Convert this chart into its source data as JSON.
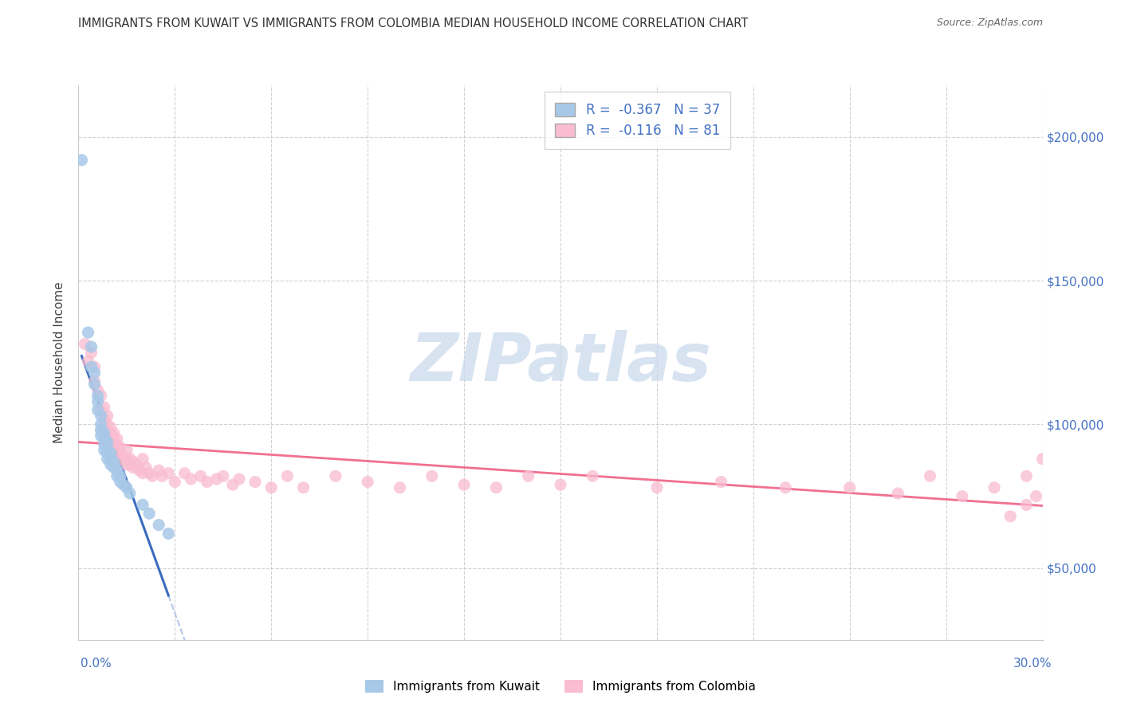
{
  "title": "IMMIGRANTS FROM KUWAIT VS IMMIGRANTS FROM COLOMBIA MEDIAN HOUSEHOLD INCOME CORRELATION CHART",
  "source": "Source: ZipAtlas.com",
  "ylabel": "Median Household Income",
  "ytick_labels": [
    "$50,000",
    "$100,000",
    "$150,000",
    "$200,000"
  ],
  "ytick_values": [
    50000,
    100000,
    150000,
    200000
  ],
  "xmin": 0.0,
  "xmax": 0.3,
  "ymin": 25000,
  "ymax": 218000,
  "kuwait_scatter_color": "#a8c8e8",
  "kuwait_line_color": "#3a6bbf",
  "colombia_scatter_color": "#f9bcd0",
  "colombia_line_color": "#f07090",
  "dashed_color": "#b0c8e8",
  "watermark_color": "#c8d8ec",
  "kuwait_points_x": [
    0.001,
    0.003,
    0.004,
    0.004,
    0.005,
    0.005,
    0.006,
    0.006,
    0.006,
    0.007,
    0.007,
    0.007,
    0.007,
    0.008,
    0.008,
    0.008,
    0.008,
    0.009,
    0.009,
    0.009,
    0.009,
    0.01,
    0.01,
    0.01,
    0.011,
    0.011,
    0.012,
    0.012,
    0.013,
    0.013,
    0.014,
    0.015,
    0.016,
    0.02,
    0.022,
    0.025,
    0.028
  ],
  "kuwait_points_y": [
    192000,
    132000,
    127000,
    120000,
    118000,
    114000,
    110000,
    108000,
    105000,
    103000,
    100000,
    98000,
    96000,
    97000,
    95000,
    93000,
    91000,
    94000,
    92000,
    90000,
    88000,
    90000,
    88000,
    86000,
    87000,
    85000,
    84000,
    82000,
    82000,
    80000,
    79000,
    78000,
    76000,
    72000,
    69000,
    65000,
    62000
  ],
  "colombia_points_x": [
    0.002,
    0.003,
    0.004,
    0.005,
    0.005,
    0.006,
    0.007,
    0.007,
    0.007,
    0.008,
    0.008,
    0.008,
    0.008,
    0.009,
    0.009,
    0.009,
    0.01,
    0.01,
    0.01,
    0.01,
    0.011,
    0.011,
    0.011,
    0.012,
    0.012,
    0.013,
    0.013,
    0.013,
    0.014,
    0.015,
    0.015,
    0.015,
    0.016,
    0.016,
    0.017,
    0.017,
    0.018,
    0.019,
    0.02,
    0.02,
    0.021,
    0.022,
    0.023,
    0.025,
    0.026,
    0.028,
    0.03,
    0.033,
    0.035,
    0.038,
    0.04,
    0.043,
    0.045,
    0.048,
    0.05,
    0.055,
    0.06,
    0.065,
    0.07,
    0.08,
    0.09,
    0.1,
    0.11,
    0.12,
    0.13,
    0.14,
    0.15,
    0.16,
    0.18,
    0.2,
    0.22,
    0.24,
    0.255,
    0.265,
    0.275,
    0.285,
    0.29,
    0.295,
    0.298,
    0.3,
    0.295
  ],
  "colombia_points_y": [
    128000,
    122000,
    125000,
    115000,
    120000,
    112000,
    110000,
    105000,
    98000,
    106000,
    102000,
    99000,
    97000,
    103000,
    100000,
    97000,
    99000,
    97000,
    95000,
    93000,
    97000,
    95000,
    93000,
    95000,
    93000,
    92000,
    90000,
    88000,
    89000,
    91000,
    88000,
    86000,
    88000,
    86000,
    87000,
    85000,
    86000,
    84000,
    88000,
    83000,
    85000,
    83000,
    82000,
    84000,
    82000,
    83000,
    80000,
    83000,
    81000,
    82000,
    80000,
    81000,
    82000,
    79000,
    81000,
    80000,
    78000,
    82000,
    78000,
    82000,
    80000,
    78000,
    82000,
    79000,
    78000,
    82000,
    79000,
    82000,
    78000,
    80000,
    78000,
    78000,
    76000,
    82000,
    75000,
    78000,
    68000,
    82000,
    75000,
    88000,
    72000
  ]
}
